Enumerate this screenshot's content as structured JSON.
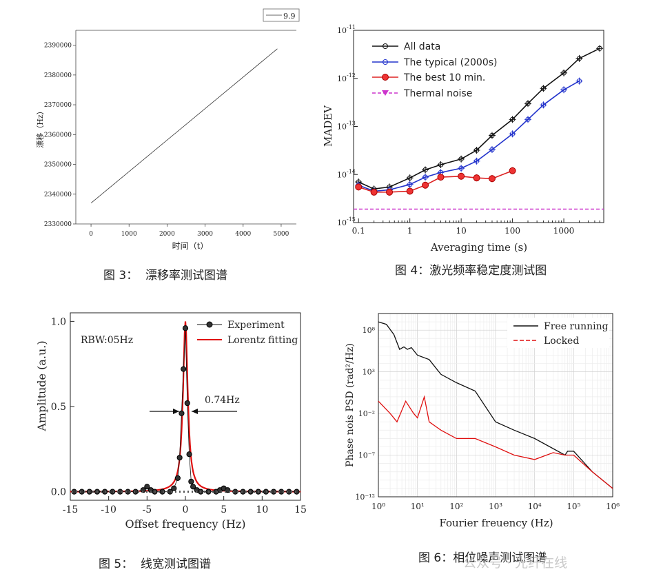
{
  "captions": {
    "fig3": "图 3：  漂移率测试图谱",
    "fig4": "图 4：激光频率稳定度测试图",
    "fig5": "图 5：  线宽测试图谱",
    "fig6": "图 6：相位噪声测试图谱"
  },
  "watermark": {
    "brand": "公众号 · 光纤在线"
  },
  "chart_data": [
    {
      "id": "drift",
      "type": "line",
      "title": "",
      "xlabel": "时间（t）",
      "ylabel": "漂移（Hz）",
      "xlim": [
        -400,
        5400
      ],
      "ylim": [
        2330000,
        2395000
      ],
      "xticks": [
        "0",
        "1000",
        "2000",
        "3000",
        "4000",
        "5000"
      ],
      "yticks": [
        "2330000",
        "2340000",
        "2350000",
        "2360000",
        "2370000",
        "2380000",
        "2390000"
      ],
      "legend": [
        "9.9"
      ],
      "series": [
        {
          "name": "9.9",
          "x": [
            0,
            4900
          ],
          "y": [
            2337000,
            2388800
          ]
        }
      ]
    },
    {
      "id": "madev",
      "type": "line",
      "xscale": "log",
      "yscale": "log",
      "xlabel": "Averaging time (s)",
      "ylabel": "MADEV",
      "xlim": [
        0.08,
        6000
      ],
      "ylim": [
        1e-15,
        1e-11
      ],
      "xticks": [
        "0.1",
        "1",
        "10",
        "100",
        "1000"
      ],
      "yticks": [
        "10-15",
        "10-14",
        "10-13",
        "10-12",
        "10-11"
      ],
      "legend": [
        "All data",
        "The typical (2000s)",
        "The best 10 min.",
        "Thermal noise"
      ],
      "series": [
        {
          "name": "All data",
          "x": [
            0.1,
            0.2,
            0.4,
            1,
            2,
            4,
            10,
            20,
            40,
            100,
            200,
            400,
            1000,
            2000,
            5000
          ],
          "y": [
            7e-15,
            5e-15,
            5.5e-15,
            8.5e-15,
            1.25e-14,
            1.6e-14,
            2.1e-14,
            3.2e-14,
            6.5e-14,
            1.4e-13,
            3e-13,
            6.2e-13,
            1.3e-12,
            2.6e-12,
            4.2e-12
          ]
        },
        {
          "name": "The typical (2000s)",
          "x": [
            0.1,
            0.2,
            0.4,
            1,
            2,
            4,
            10,
            20,
            40,
            100,
            200,
            400,
            1000,
            2000
          ],
          "y": [
            6e-15,
            4.5e-15,
            4.8e-15,
            6.2e-15,
            8.8e-15,
            1.1e-14,
            1.35e-14,
            1.9e-14,
            3.3e-14,
            7e-14,
            1.4e-13,
            2.8e-13,
            5.8e-13,
            8.8e-13
          ]
        },
        {
          "name": "The best 10 min.",
          "x": [
            0.1,
            0.2,
            0.4,
            1,
            2,
            4,
            10,
            20,
            40,
            100
          ],
          "y": [
            5.5e-15,
            4.3e-15,
            4.3e-15,
            4.5e-15,
            6e-15,
            8.8e-15,
            9.2e-15,
            8.5e-15,
            8.2e-15,
            1.2e-14
          ]
        },
        {
          "name": "Thermal noise",
          "x": [
            0.08,
            6000
          ],
          "y": [
            1.9e-15,
            1.9e-15
          ]
        }
      ]
    },
    {
      "id": "linewidth",
      "type": "line",
      "xlabel": "Offset frequency (Hz)",
      "ylabel": "Amplitude (a.u.)",
      "xlim": [
        -15,
        15
      ],
      "ylim": [
        -0.05,
        1.05
      ],
      "xticks": [
        "-15",
        "-10",
        "-5",
        "0",
        "5",
        "10",
        "15"
      ],
      "yticks": [
        "0.0",
        "0.5",
        "1.0"
      ],
      "legend": [
        "Experiment",
        "Lorentz fitting"
      ],
      "annotations": [
        "RBW:05Hz",
        "0.74Hz"
      ],
      "series": [
        {
          "name": "Experiment",
          "x": [
            -14.5,
            -13.5,
            -12.5,
            -11.5,
            -10.5,
            -9.5,
            -8.5,
            -7.5,
            -6.5,
            -5.5,
            -5,
            -4.5,
            -4,
            -3,
            -2,
            -1.5,
            -1,
            -0.75,
            -0.5,
            -0.25,
            0,
            0.25,
            0.5,
            0.75,
            1,
            1.5,
            2,
            3,
            4,
            4.5,
            5,
            5.5,
            6.5,
            7.5,
            8.5,
            9.5,
            10.5,
            11.5,
            12.5,
            13.5,
            14.5
          ],
          "y": [
            0,
            0,
            0,
            0,
            0,
            0,
            0,
            0,
            0,
            0.01,
            0.03,
            0.01,
            0,
            0,
            0,
            0.02,
            0.08,
            0.2,
            0.46,
            0.72,
            0.96,
            0.52,
            0.22,
            0.06,
            0.03,
            0.01,
            0,
            0,
            0,
            0.01,
            0.02,
            0.01,
            0,
            0,
            0,
            0,
            0,
            0,
            0,
            0,
            0
          ]
        },
        {
          "name": "Lorentz fitting",
          "gamma_hz": 0.74,
          "center_hz": 0,
          "amplitude": 1
        }
      ]
    },
    {
      "id": "phase_noise",
      "type": "line",
      "xscale": "log",
      "yscale": "log",
      "xlabel": "Fourier freuency (Hz)",
      "ylabel": "Phase nois PSD (rad²/Hz)",
      "xlim": [
        1,
        1000000
      ],
      "ylim": [
        1e-12,
        10000000000.0
      ],
      "xticks": [
        "10⁰",
        "10¹",
        "10²",
        "10³",
        "10⁴",
        "10⁵",
        "10⁶"
      ],
      "yticks": [
        "10⁻¹²",
        "10⁻⁷",
        "10⁻²",
        "10³",
        "10⁸"
      ],
      "legend": [
        "Free running",
        "Locked"
      ],
      "series": [
        {
          "name": "Free running",
          "x": [
            1,
            1.6,
            2.5,
            3.5,
            4.5,
            5.5,
            7,
            10,
            20,
            40,
            100,
            300,
            1000,
            3000,
            10000,
            60000,
            70000,
            100000,
            300000,
            1000000
          ],
          "y": [
            1000000000.0,
            500000000.0,
            30000000.0,
            500000.0,
            1000000.0,
            500000.0,
            800000.0,
            100000.0,
            30000.0,
            500.0,
            50,
            5,
            0.001,
            0.0001,
            1e-05,
            1e-07,
            3e-07,
            3e-07,
            1e-09,
            1e-11
          ]
        },
        {
          "name": "Locked",
          "x": [
            1,
            2,
            3,
            5,
            8,
            10,
            15,
            20,
            40,
            100,
            300,
            1000,
            3000,
            10000,
            30000,
            60000,
            100000,
            300000,
            1000000
          ],
          "y": [
            0.3,
            0.01,
            0.001,
            0.3,
            0.01,
            0.003,
            1,
            0.001,
            0.0001,
            1e-05,
            1e-05,
            1e-06,
            1e-07,
            3e-08,
            2e-07,
            1e-07,
            1e-07,
            1e-09,
            1e-11
          ]
        }
      ]
    }
  ]
}
